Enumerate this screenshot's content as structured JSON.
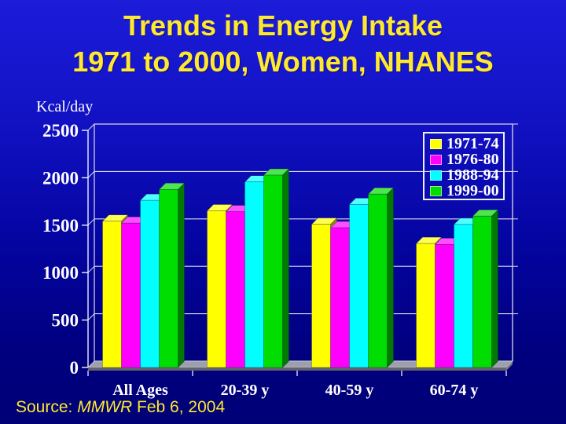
{
  "slide": {
    "title_line1": "Trends in Energy Intake",
    "title_line2": "1971 to 2000, Women, NHANES",
    "title_color": "#ffe92e",
    "background_top": "#1c1cd9",
    "background_bottom": "#000076"
  },
  "source": {
    "prefix": "Source: ",
    "journal_italic": "MMWR",
    "suffix": " Feb 6, 2004"
  },
  "chart_data": {
    "type": "bar",
    "style": "3d-clustered",
    "title": "",
    "xlabel": "",
    "ylabel": "Kcal/day",
    "ylim": [
      0,
      2500
    ],
    "yticks": [
      0,
      500,
      1000,
      1500,
      2000,
      2500
    ],
    "grid": true,
    "legend_position": "top-right",
    "categories": [
      "All Ages",
      "20-39 y",
      "40-59 y",
      "60-74 y"
    ],
    "series": [
      {
        "name": "1971-74",
        "color": "#ffff00",
        "values": [
          1542,
          1652,
          1510,
          1307
        ]
      },
      {
        "name": "1976-80",
        "color": "#ff00ff",
        "values": [
          1522,
          1643,
          1473,
          1297
        ]
      },
      {
        "name": "1988-94",
        "color": "#00ffff",
        "values": [
          1762,
          1956,
          1719,
          1508
        ]
      },
      {
        "name": "1999-00",
        "color": "#00dd00",
        "values": [
          1877,
          2028,
          1828,
          1596
        ]
      }
    ],
    "axis_text_color": "#ffffff",
    "gridline_color": "#dcdcec",
    "floor_color": "#9da0aa"
  }
}
